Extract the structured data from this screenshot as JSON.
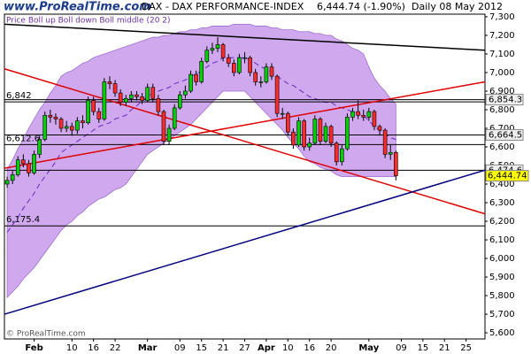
{
  "chart_data": {
    "type": "candlestick",
    "site": "www.ProRealTime.com",
    "title": "DAX - DAX PERFORMANCE-INDEX",
    "price_change": "6,444.74 (-1.90%)",
    "period": "Daily 08 May 2012",
    "legend": "Price Boll up Boll down Boll middle (20 2)",
    "copyright": "© ProRealTime.com",
    "categories": [
      null,
      null,
      null,
      null,
      null,
      "Feb",
      null,
      null,
      null,
      null,
      null,
      null,
      "10",
      null,
      null,
      null,
      "16",
      null,
      null,
      null,
      "22",
      null,
      null,
      null,
      null,
      null,
      "Mar",
      null,
      null,
      null,
      null,
      null,
      "09",
      null,
      null,
      null,
      "15",
      null,
      null,
      null,
      "21",
      null,
      null,
      null,
      "27",
      null,
      null,
      null,
      "Apr",
      null,
      null,
      null,
      "10",
      null,
      null,
      null,
      "16",
      null,
      null,
      null,
      "20",
      null,
      null,
      null,
      null,
      null,
      null,
      "May",
      null,
      null,
      null,
      null,
      null,
      "09",
      null,
      null,
      null,
      "15",
      null,
      null,
      null,
      "21",
      null,
      null,
      null,
      "25",
      null,
      null,
      null
    ],
    "ohlc": {
      "open": [
        6400,
        6420,
        6450,
        6530,
        6510,
        6460,
        6560,
        6640,
        6770,
        6760,
        6750,
        6700,
        6710,
        6690,
        6740,
        6730,
        6850,
        6790,
        6750,
        6950,
        6940,
        6890,
        6840,
        6860,
        6880,
        6870,
        6850,
        6920,
        6860,
        6790,
        6630,
        6700,
        6810,
        6880,
        6900,
        6990,
        6950,
        7060,
        7120,
        7130,
        7150,
        7080,
        7050,
        7000,
        7080,
        7080,
        7000,
        6950,
        6950,
        7030,
        6980,
        6780,
        6780,
        6680,
        6610,
        6740,
        6600,
        6620,
        6750,
        6630,
        6710,
        6620,
        6520,
        6590,
        6760,
        6790,
        6770,
        6760,
        6790,
        6710,
        6690,
        6560,
        6570,
        null,
        null,
        null,
        null,
        null,
        null,
        null,
        null,
        null,
        null,
        null,
        null,
        null,
        null,
        null,
        null
      ],
      "high": [
        6440,
        6470,
        6550,
        6560,
        6530,
        6580,
        6660,
        6790,
        6800,
        6780,
        6760,
        6740,
        6730,
        6760,
        6770,
        6870,
        6870,
        6810,
        6970,
        6980,
        6960,
        6910,
        6880,
        6900,
        6900,
        6890,
        6940,
        6940,
        6880,
        6800,
        6720,
        6830,
        6900,
        6930,
        7010,
        7010,
        7080,
        7140,
        7160,
        7190,
        7160,
        7100,
        7070,
        7100,
        7110,
        7090,
        7020,
        6980,
        7050,
        7050,
        6990,
        6810,
        6790,
        6700,
        6760,
        6750,
        6650,
        6770,
        6760,
        6730,
        6720,
        6630,
        6610,
        6780,
        6810,
        6850,
        6800,
        6810,
        6800,
        6720,
        6700,
        6610,
        6580,
        null,
        null,
        null,
        null,
        null,
        null,
        null,
        null,
        null,
        null,
        null,
        null,
        null,
        null,
        null,
        null
      ],
      "low": [
        6380,
        6400,
        6440,
        6490,
        6440,
        6450,
        6540,
        6630,
        6730,
        6720,
        6680,
        6680,
        6660,
        6670,
        6700,
        6720,
        6770,
        6730,
        6740,
        6910,
        6870,
        6820,
        6820,
        6840,
        6850,
        6830,
        6840,
        6840,
        6770,
        6610,
        6610,
        6690,
        6800,
        6860,
        6890,
        6930,
        6940,
        7050,
        7100,
        7110,
        7060,
        7030,
        6980,
        6990,
        7050,
        6980,
        6930,
        6920,
        6940,
        6960,
        6760,
        6750,
        6660,
        6590,
        6600,
        6580,
        6580,
        6610,
        6610,
        6620,
        6600,
        6500,
        6500,
        6580,
        6740,
        6750,
        6740,
        6740,
        6690,
        6660,
        6540,
        6530,
        6420,
        null,
        null,
        null,
        null,
        null,
        null,
        null,
        null,
        null,
        null,
        null,
        null,
        null,
        null,
        null,
        null
      ],
      "close": [
        6420,
        6450,
        6530,
        6510,
        6460,
        6560,
        6640,
        6770,
        6760,
        6750,
        6700,
        6710,
        6690,
        6740,
        6730,
        6850,
        6790,
        6750,
        6950,
        6940,
        6890,
        6840,
        6860,
        6880,
        6870,
        6850,
        6920,
        6860,
        6790,
        6630,
        6700,
        6810,
        6880,
        6900,
        6990,
        6950,
        7060,
        7120,
        7130,
        7150,
        7080,
        7050,
        7000,
        7080,
        7080,
        7000,
        6950,
        6950,
        7030,
        6980,
        6780,
        6780,
        6680,
        6610,
        6740,
        6600,
        6620,
        6750,
        6630,
        6710,
        6620,
        6520,
        6590,
        6760,
        6790,
        6770,
        6760,
        6790,
        6710,
        6690,
        6560,
        6570,
        6444.74,
        null,
        null,
        null,
        null,
        null,
        null,
        null,
        null,
        null,
        null,
        null,
        null,
        null,
        null,
        null,
        null
      ],
      "up_color": "#00d000",
      "down_color": "#ff2a2a"
    },
    "bollinger": {
      "upper": [
        6480,
        6530,
        6590,
        6640,
        6700,
        6750,
        6800,
        6840,
        6890,
        6930,
        6980,
        7000,
        7010,
        7030,
        7050,
        7060,
        7080,
        7090,
        7100,
        7110,
        7120,
        7130,
        7140,
        7150,
        7160,
        7170,
        7180,
        7190,
        7190,
        7200,
        7200,
        7210,
        7220,
        7220,
        7230,
        7230,
        7240,
        7240,
        7250,
        7250,
        7250,
        7250,
        7260,
        7260,
        7260,
        7260,
        7250,
        7250,
        7250,
        7240,
        7240,
        7230,
        7230,
        7230,
        7220,
        7220,
        7220,
        7210,
        7210,
        7200,
        7200,
        7180,
        7170,
        7150,
        7130,
        7120,
        7100,
        7030,
        6970,
        6930,
        6900,
        6860,
        6830,
        null,
        null,
        null,
        null,
        null,
        null,
        null,
        null,
        null,
        null,
        null,
        null,
        null,
        null,
        null,
        null
      ],
      "lower": [
        5790,
        5820,
        5850,
        5890,
        5920,
        5950,
        5990,
        6030,
        6070,
        6110,
        6150,
        6180,
        6200,
        6230,
        6250,
        6280,
        6300,
        6320,
        6330,
        6350,
        6370,
        6380,
        6400,
        6440,
        6480,
        6520,
        6560,
        6580,
        6600,
        6620,
        6640,
        6660,
        6680,
        6700,
        6720,
        6750,
        6780,
        6810,
        6840,
        6870,
        6900,
        6900,
        6900,
        6900,
        6900,
        6870,
        6840,
        6810,
        6780,
        6750,
        6720,
        6690,
        6650,
        6620,
        6590,
        6550,
        6520,
        6510,
        6490,
        6480,
        6470,
        6450,
        6440,
        6440,
        6440,
        6440,
        6440,
        6440,
        6440,
        6440,
        6440,
        6440,
        6440,
        null,
        null,
        null,
        null,
        null,
        null,
        null,
        null,
        null,
        null,
        null,
        null,
        null,
        null,
        null,
        null
      ],
      "middle": [
        6140,
        6180,
        6220,
        6270,
        6310,
        6350,
        6400,
        6440,
        6480,
        6520,
        6570,
        6590,
        6610,
        6630,
        6650,
        6670,
        6690,
        6710,
        6720,
        6730,
        6750,
        6760,
        6770,
        6800,
        6820,
        6850,
        6870,
        6890,
        6900,
        6910,
        6920,
        6940,
        6950,
        6960,
        6980,
        6990,
        7010,
        7030,
        7050,
        7060,
        7080,
        7080,
        7080,
        7080,
        7080,
        7070,
        7050,
        7030,
        7020,
        7000,
        6980,
        6960,
        6940,
        6930,
        6910,
        6890,
        6870,
        6860,
        6850,
        6840,
        6840,
        6820,
        6810,
        6800,
        6790,
        6780,
        6770,
        6740,
        6710,
        6690,
        6670,
        6650,
        6640,
        null,
        null,
        null,
        null,
        null,
        null,
        null,
        null,
        null,
        null,
        null,
        null,
        null,
        null,
        null,
        null
      ],
      "band_color": "#cfa8ee",
      "middle_color": "#6a2bc4"
    },
    "trendlines": [
      {
        "x": [
          -0.5,
          88.5
        ],
        "y": [
          7260,
          7120
        ],
        "color": "#000000"
      },
      {
        "x": [
          -0.5,
          88.5
        ],
        "y": [
          7020,
          6240
        ],
        "color": "#e00000"
      },
      {
        "x": [
          -0.5,
          88.5
        ],
        "y": [
          6485,
          6950
        ],
        "color": "#e00000"
      },
      {
        "x": [
          -0.5,
          88.5
        ],
        "y": [
          5700,
          6475
        ],
        "color": "#000080"
      }
    ],
    "levels": [
      {
        "value": 6842,
        "label": "6,842",
        "side": "left"
      },
      {
        "value": 6612.6,
        "label": "6,612.6",
        "side": "left"
      },
      {
        "value": 6175.4,
        "label": "6,175.4",
        "side": "left"
      },
      {
        "value": 6854.3,
        "label": "6,854.3",
        "side": "right"
      },
      {
        "value": 6664.5,
        "label": "6,664.5",
        "side": "right"
      },
      {
        "value": 6474.6,
        "label": "6,474.6",
        "side": "right"
      }
    ],
    "last_price": {
      "value": 6444.74,
      "label": "6,444.74",
      "color": "#ffff00"
    },
    "ylim": [
      5567,
      7314
    ],
    "yticks": [
      {
        "value": 5600,
        "label": "5,600"
      },
      {
        "value": 5700,
        "label": "5,700"
      },
      {
        "value": 5800,
        "label": "5,800"
      },
      {
        "value": 5900,
        "label": "5,900"
      },
      {
        "value": 6000,
        "label": "6,000"
      },
      {
        "value": 6100,
        "label": "6,100"
      },
      {
        "value": 6200,
        "label": "6,200"
      },
      {
        "value": 6300,
        "label": "6,300"
      },
      {
        "value": 6400,
        "label": "6,400"
      },
      {
        "value": 6500,
        "label": "6,500"
      },
      {
        "value": 6600,
        "label": "6,600"
      },
      {
        "value": 6700,
        "label": "6,700"
      },
      {
        "value": 6800,
        "label": "6,800"
      },
      {
        "value": 6900,
        "label": "6,900"
      },
      {
        "value": 7000,
        "label": "7,000"
      },
      {
        "value": 7100,
        "label": "7,100"
      },
      {
        "value": 7200,
        "label": "7,200"
      },
      {
        "value": 7300,
        "label": "7,300"
      }
    ]
  }
}
